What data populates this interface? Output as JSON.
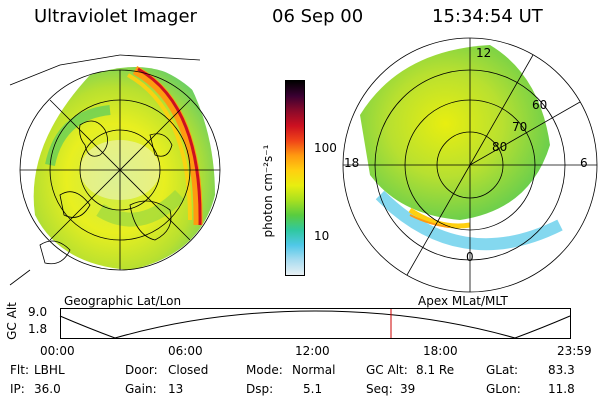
{
  "header": {
    "instrument": "Ultraviolet Imager",
    "date": "06 Sep 00",
    "time": "15:34:54 UT"
  },
  "colorbar": {
    "unit_label": "photon cm⁻²s⁻¹",
    "ticks": [
      "100",
      "10"
    ],
    "colors": [
      "#000000",
      "#3a0032",
      "#8a0a2a",
      "#cc1020",
      "#f04418",
      "#ff9a10",
      "#ffd010",
      "#e8ee10",
      "#a8e020",
      "#58cc40",
      "#30c8a0",
      "#50c8e8",
      "#a8dcf0",
      "#e8f0f4"
    ]
  },
  "left_panel": {
    "caption": "Geographic Lat/Lon"
  },
  "right_panel": {
    "caption": "Apex MLat/MLT",
    "mlt_labels": {
      "top": "12",
      "left": "18",
      "right": "6",
      "bottom": "0"
    },
    "lat_labels": [
      "60",
      "70",
      "80"
    ]
  },
  "altitude_plot": {
    "ylabel": "GC Alt",
    "y_ticks": [
      "9.0",
      "1.8"
    ],
    "x_ticks": [
      "00:00",
      "06:00",
      "12:00",
      "18:00",
      "23:59"
    ],
    "marker_color": "#cc0000"
  },
  "info": {
    "filter_label": "Flt:",
    "filter": "LBHL",
    "ip_label": "IP:",
    "ip": "36.0",
    "door_label": "Door:",
    "door": "Closed",
    "gain_label": "Gain:",
    "gain": "13",
    "mode_label": "Mode:",
    "mode": "Normal",
    "dsp_label": "Dsp:",
    "dsp": "5.1",
    "gc_alt_label": "GC Alt:",
    "gc_alt": "8.1 Re",
    "seq_label": "Seq:",
    "seq": "39",
    "glat_label": "GLat:",
    "glat": "83.3",
    "glon_label": "GLon:",
    "glon": "11.8"
  }
}
